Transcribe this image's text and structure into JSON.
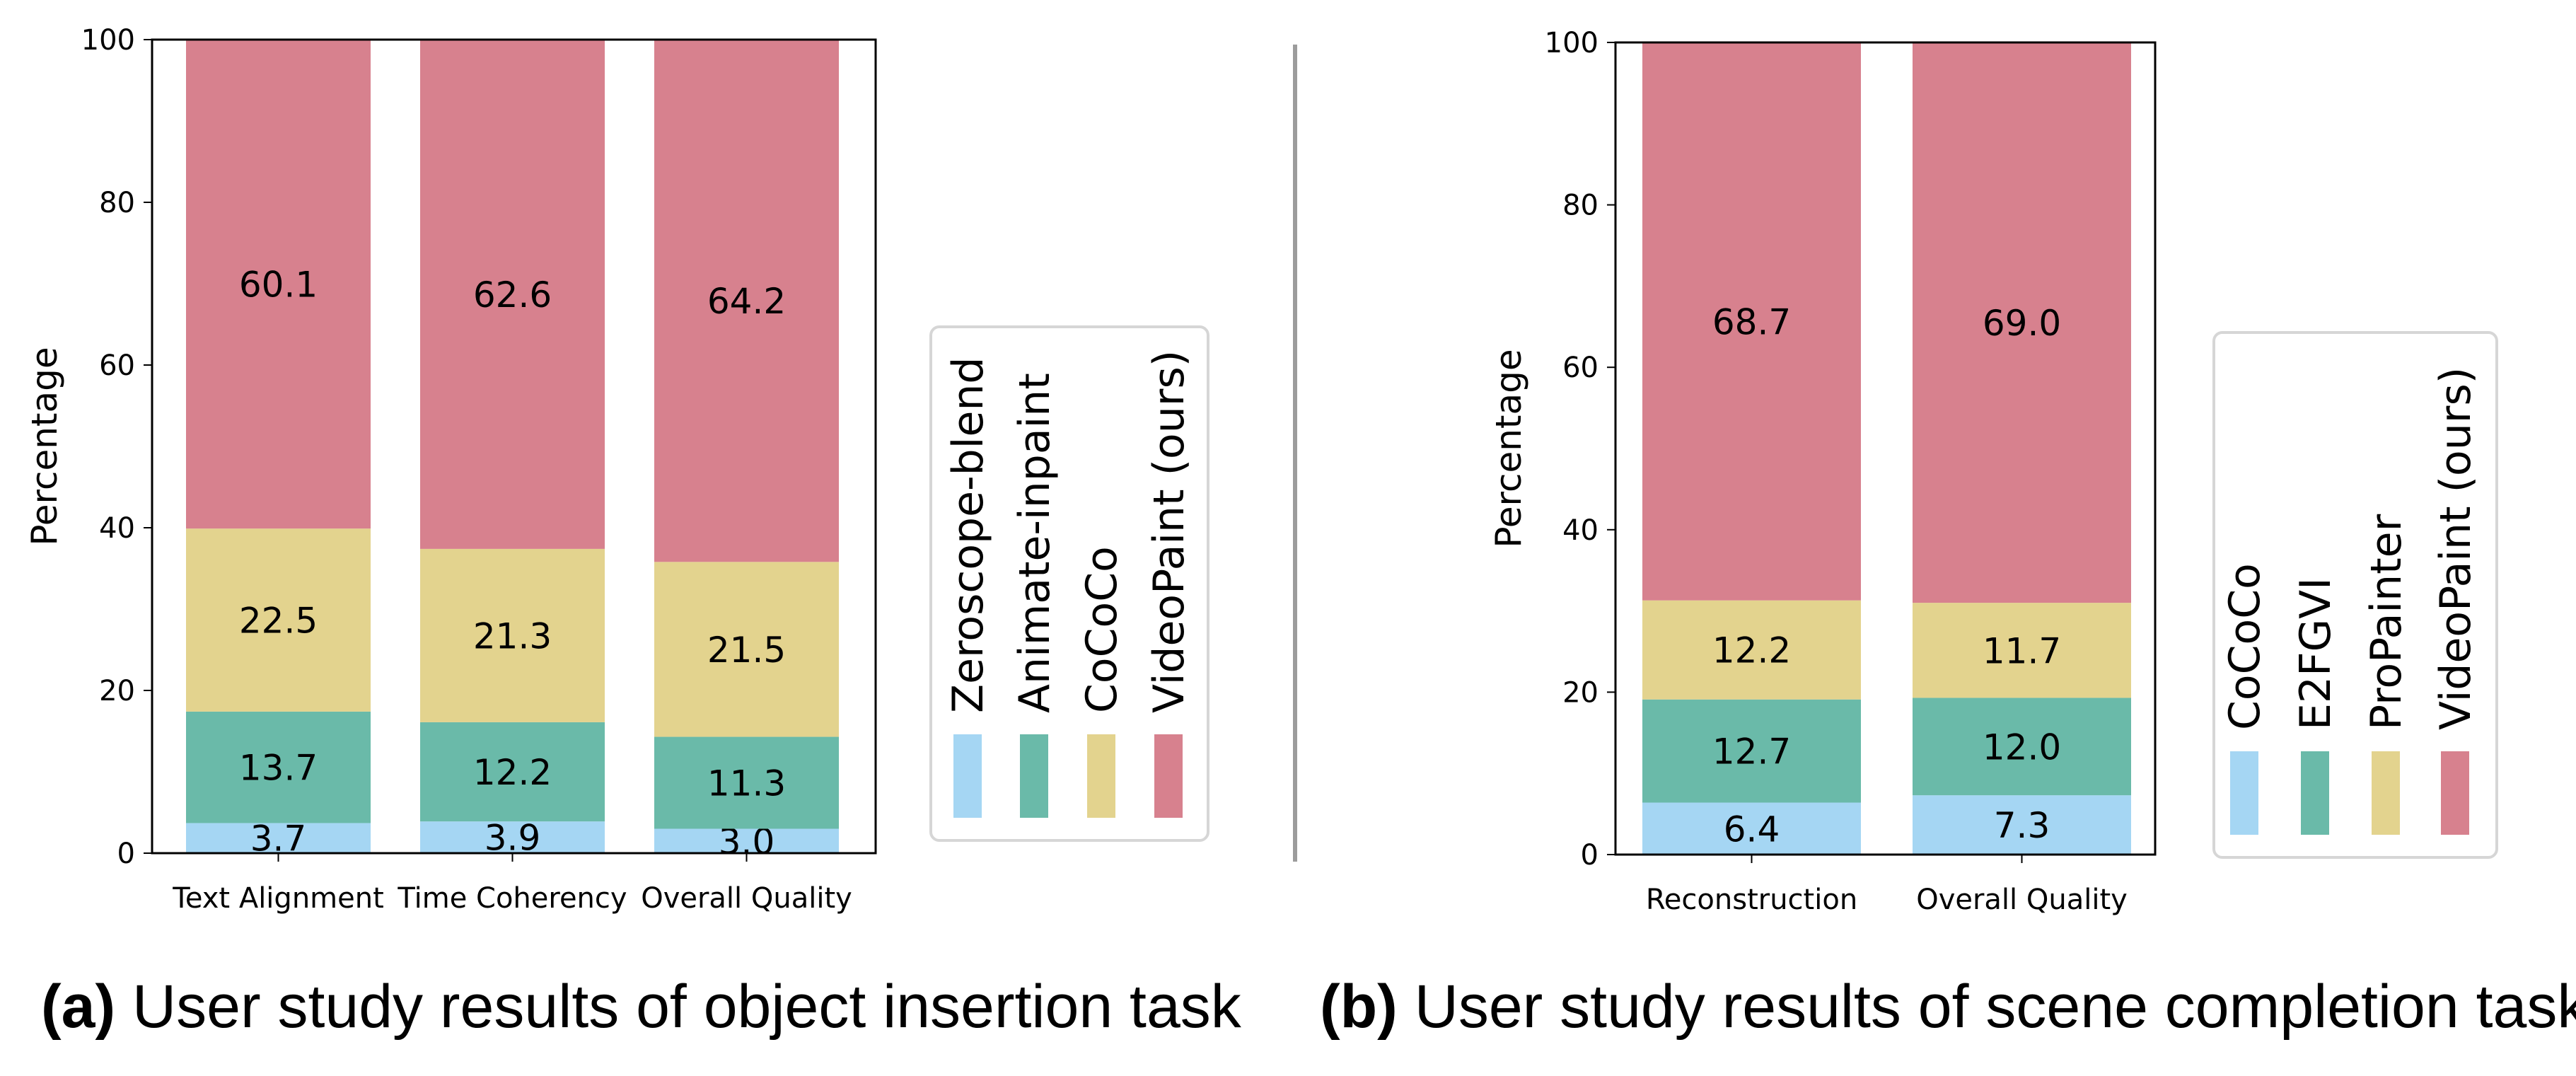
{
  "chart_data": [
    {
      "type": "bar",
      "stacked": true,
      "title": "",
      "xlabel": "",
      "ylabel": "Percentage",
      "ylim": [
        0,
        100
      ],
      "yticks": [
        0,
        20,
        40,
        60,
        80,
        100
      ],
      "grid": false,
      "legend_position": "right",
      "categories": [
        "Text Alignment",
        "Time Coherency",
        "Overall Quality"
      ],
      "series": [
        {
          "name": "Zeroscope-blend",
          "color": "#a5d6f3",
          "values": [
            3.7,
            3.9,
            3.0
          ]
        },
        {
          "name": "Animate-inpaint",
          "color": "#6abaa9",
          "values": [
            13.7,
            12.2,
            11.3
          ]
        },
        {
          "name": "CoCoCo",
          "color": "#e3d38e",
          "values": [
            22.5,
            21.3,
            21.5
          ]
        },
        {
          "name": "VideoPaint (ours)",
          "color": "#d7818e",
          "values": [
            60.1,
            62.6,
            64.2
          ]
        }
      ],
      "caption_bold": "(a)",
      "caption_text": " User study results of object insertion task"
    },
    {
      "type": "bar",
      "stacked": true,
      "title": "",
      "xlabel": "",
      "ylabel": "Percentage",
      "ylim": [
        0,
        100
      ],
      "yticks": [
        0,
        20,
        40,
        60,
        80,
        100
      ],
      "grid": false,
      "legend_position": "right",
      "categories": [
        "Reconstruction",
        "Overall Quality"
      ],
      "series": [
        {
          "name": "CoCoCo",
          "color": "#a5d6f3",
          "values": [
            6.4,
            7.3
          ]
        },
        {
          "name": "E2FGVI",
          "color": "#6abaa9",
          "values": [
            12.7,
            12.0
          ]
        },
        {
          "name": "ProPainter",
          "color": "#e3d38e",
          "values": [
            12.2,
            11.7
          ]
        },
        {
          "name": "VideoPaint (ours)",
          "color": "#d7818e",
          "values": [
            68.7,
            69.0
          ]
        }
      ],
      "caption_bold": "(b)",
      "caption_text": " User study results of scene completion task"
    }
  ]
}
